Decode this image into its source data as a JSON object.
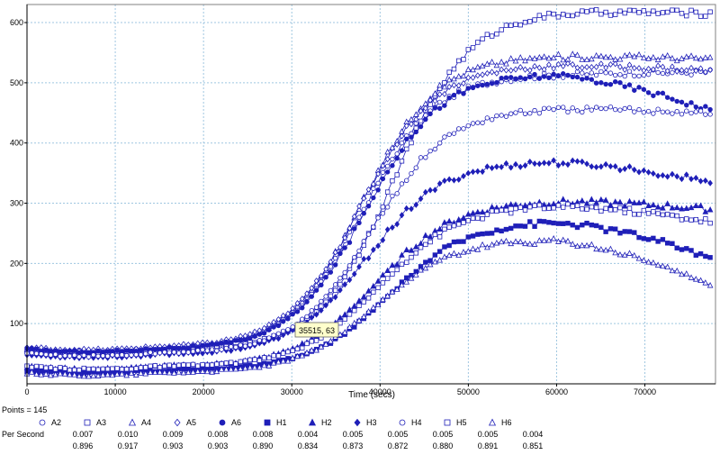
{
  "points_label": "Points = 145",
  "per_second_label": "Per Second",
  "tooltip": "35515, 63",
  "colors": {
    "series": "#1f1fb8",
    "grid": "#9fc6e0",
    "axis": "#000000"
  },
  "legend": [
    {
      "name": "A2",
      "marker": "circle-open",
      "rate": "0.007",
      "r": "0.896"
    },
    {
      "name": "A3",
      "marker": "square-open",
      "rate": "0.010",
      "r": "0.917"
    },
    {
      "name": "A4",
      "marker": "triangle-open",
      "rate": "0.009",
      "r": "0.903"
    },
    {
      "name": "A5",
      "marker": "diamond-open",
      "rate": "0.008",
      "r": "0.903"
    },
    {
      "name": "A6",
      "marker": "circle-filled",
      "rate": "0.008",
      "r": "0.890"
    },
    {
      "name": "H1",
      "marker": "square-filled",
      "rate": "0.004",
      "r": "0.834"
    },
    {
      "name": "H2",
      "marker": "triangle-filled",
      "rate": "0.005",
      "r": "0.873"
    },
    {
      "name": "H3",
      "marker": "diamond-filled",
      "rate": "0.005",
      "r": "0.872"
    },
    {
      "name": "H4",
      "marker": "circle-open",
      "rate": "0.005",
      "r": "0.880"
    },
    {
      "name": "H5",
      "marker": "square-open",
      "rate": "0.005",
      "r": "0.891"
    },
    {
      "name": "H6",
      "marker": "triangle-open",
      "rate": "0.004",
      "r": "0.851"
    }
  ],
  "chart_data": {
    "type": "scatter",
    "xlabel": "Time (secs)",
    "ylabel": "",
    "xlim": [
      0,
      78000
    ],
    "ylim": [
      0,
      630
    ],
    "xticks": [
      0,
      10000,
      20000,
      30000,
      40000,
      50000,
      60000,
      70000
    ],
    "yticks": [
      100,
      200,
      300,
      400,
      500,
      600
    ],
    "grid": true,
    "points_per_series": 145,
    "series": [
      {
        "name": "A2",
        "start": 58,
        "plateau": 515,
        "midpoint": 38000,
        "slope": 4200,
        "end": 518
      },
      {
        "name": "A3",
        "start": 55,
        "plateau": 620,
        "midpoint": 41500,
        "slope": 4300,
        "end": 615
      },
      {
        "name": "A4",
        "start": 57,
        "plateau": 545,
        "midpoint": 38000,
        "slope": 4200,
        "end": 540
      },
      {
        "name": "A5",
        "start": 60,
        "plateau": 530,
        "midpoint": 37800,
        "slope": 4200,
        "end": 520
      },
      {
        "name": "A6",
        "start": 57,
        "plateau": 515,
        "midpoint": 38300,
        "slope": 4200,
        "end": 455
      },
      {
        "name": "H1",
        "start": 22,
        "plateau": 272,
        "midpoint": 41000,
        "slope": 4500,
        "end": 210
      },
      {
        "name": "H2",
        "start": 28,
        "plateau": 305,
        "midpoint": 39500,
        "slope": 4500,
        "end": 290
      },
      {
        "name": "H3",
        "start": 48,
        "plateau": 370,
        "midpoint": 38500,
        "slope": 4300,
        "end": 335
      },
      {
        "name": "H4",
        "start": 50,
        "plateau": 458,
        "midpoint": 39000,
        "slope": 4300,
        "end": 450
      },
      {
        "name": "H5",
        "start": 28,
        "plateau": 298,
        "midpoint": 40000,
        "slope": 4500,
        "end": 270
      },
      {
        "name": "H6",
        "start": 18,
        "plateau": 240,
        "midpoint": 39500,
        "slope": 4400,
        "end": 165
      }
    ]
  }
}
